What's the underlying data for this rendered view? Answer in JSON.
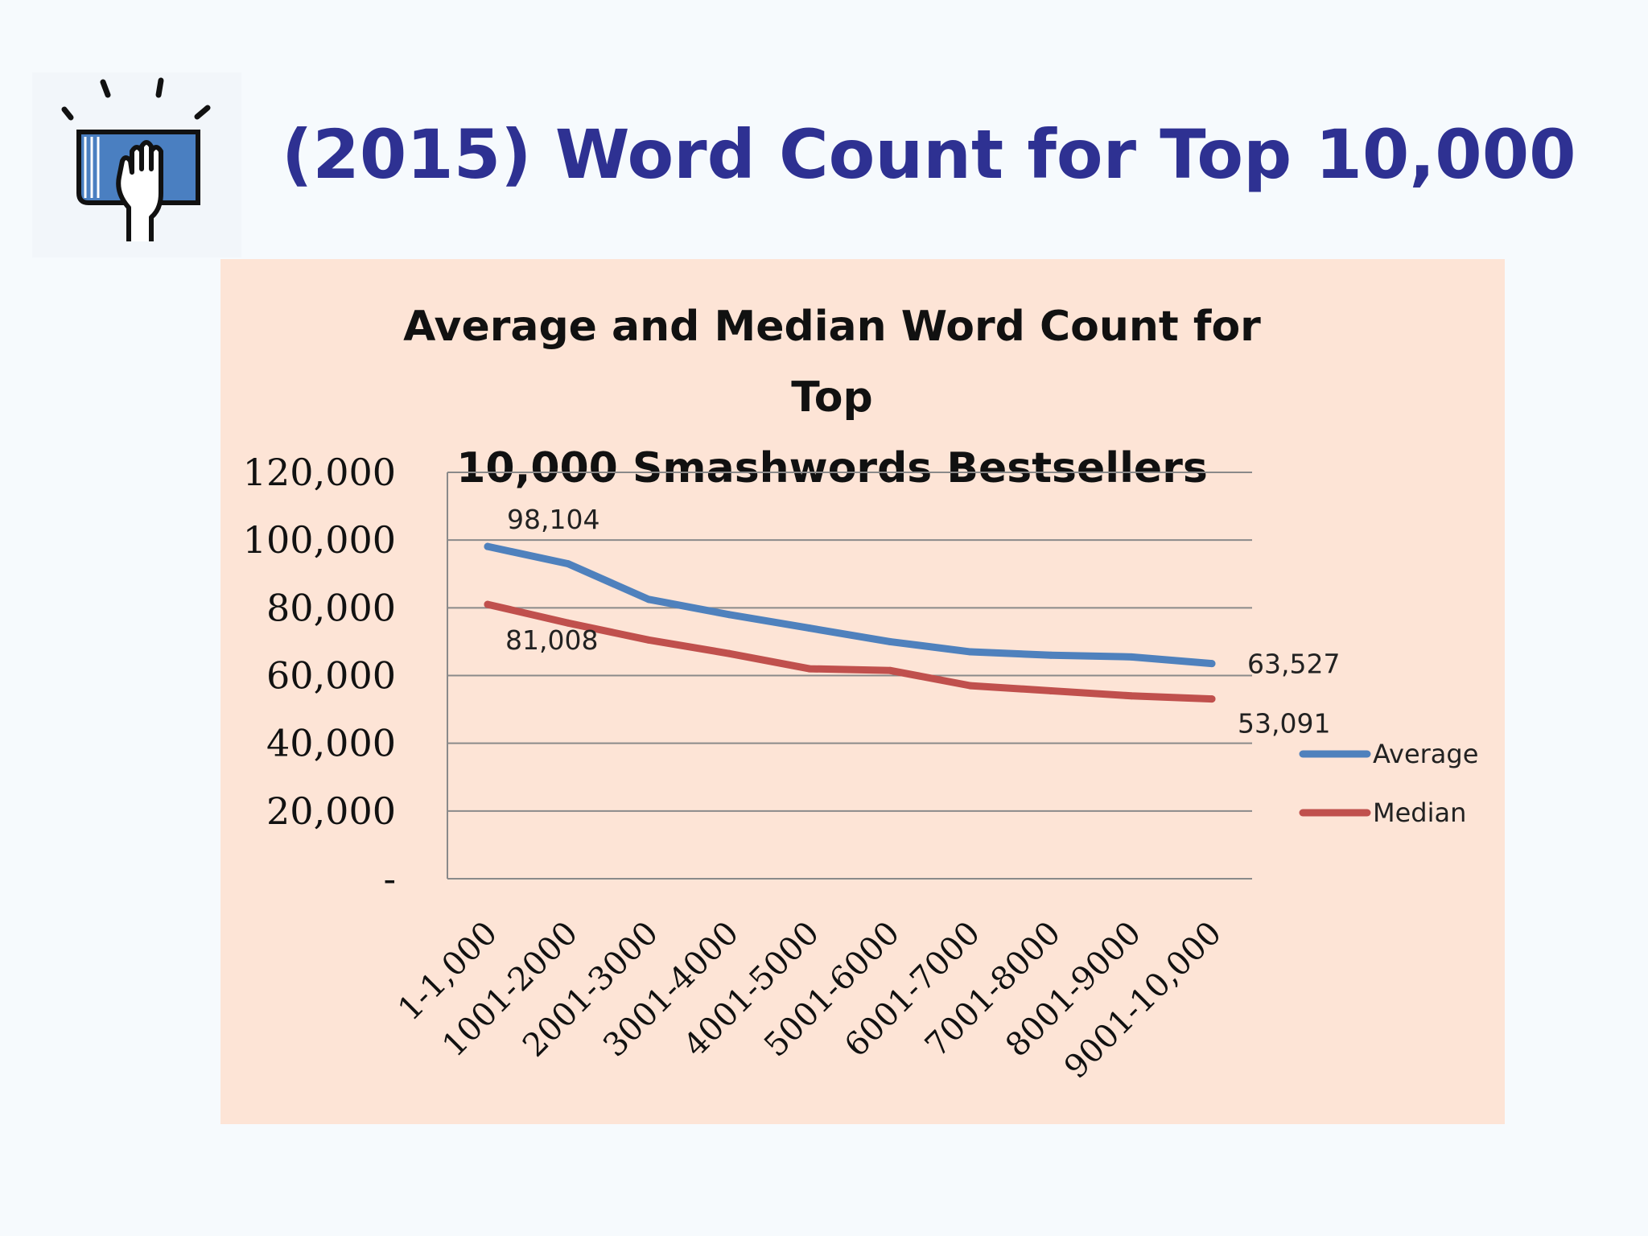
{
  "slide": {
    "title": "(2015) Word Count for Top 10,000",
    "logo_icon": "book-hand-icon"
  },
  "chart_data": {
    "type": "line",
    "title_lines": [
      "Average and Median Word Count for Top",
      "10,000 Smashwords Bestsellers"
    ],
    "categories": [
      "1-1,000",
      "1001-2000",
      "2001-3000",
      "3001-4000",
      "4001-5000",
      "5001-6000",
      "6001-7000",
      "7001-8000",
      "8001-9000",
      "9001-10,000"
    ],
    "y_ticks": [
      "-",
      "20,000",
      "40,000",
      "60,000",
      "80,000",
      "100,000",
      "120,000"
    ],
    "ylim": [
      0,
      120000
    ],
    "grid": true,
    "legend_position": "right",
    "series": [
      {
        "name": "Average",
        "color": "#4f81bd",
        "values": [
          98104,
          93000,
          82500,
          78000,
          74000,
          70000,
          67000,
          66000,
          65500,
          63527
        ],
        "labels": [
          {
            "index": 0,
            "text": "98,104",
            "placement": "above"
          },
          {
            "index": 9,
            "text": "63,527",
            "placement": "right"
          }
        ]
      },
      {
        "name": "Median",
        "color": "#c0504d",
        "values": [
          81008,
          75500,
          70500,
          66500,
          62000,
          61500,
          57000,
          55500,
          54000,
          53091
        ],
        "labels": [
          {
            "index": 0,
            "text": "81,008",
            "placement": "below"
          },
          {
            "index": 9,
            "text": "53,091",
            "placement": "below-right"
          }
        ]
      }
    ]
  }
}
